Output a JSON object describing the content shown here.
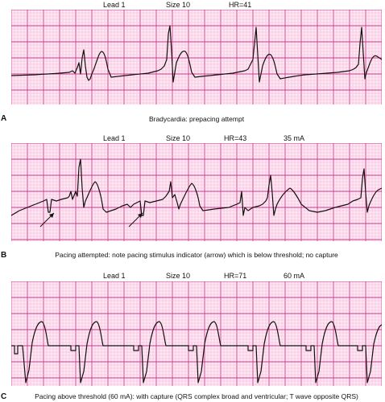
{
  "panels": [
    {
      "letter": "A",
      "lead": "Lead 1",
      "size": "Size 10",
      "hr": "HR=41",
      "current": "",
      "caption": "Bradycardia: prepacing attempt"
    },
    {
      "letter": "B",
      "lead": "Lead 1",
      "size": "Size 10",
      "hr": "HR=43",
      "current": "35 mA",
      "caption": "Pacing attempted: note pacing stimulus indicator (arrow) which is below threshold; no capture"
    },
    {
      "letter": "C",
      "lead": "Lead 1",
      "size": "Size 10",
      "hr": "HR=71",
      "current": "60 mA",
      "caption": "Pacing above threshold (60 mA): with capture (QRS complex broad and ventricular; T wave opposite QRS)"
    }
  ],
  "colors": {
    "grid_minor": "#f2a3cc",
    "grid_major": "#d6338a",
    "paper": "#fde9f3",
    "trace": "#111111"
  }
}
